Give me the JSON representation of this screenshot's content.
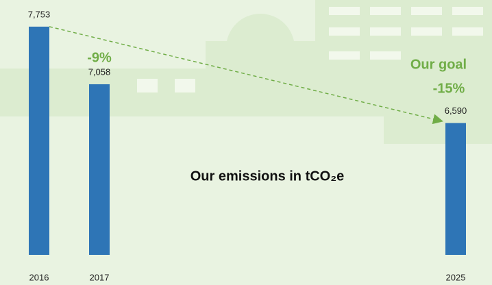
{
  "chart_data": {
    "type": "bar",
    "categories": [
      "2016",
      "2017",
      "2025"
    ],
    "values": [
      7753,
      7058,
      6590
    ],
    "value_labels": [
      "7,753",
      "7,058",
      "6,590"
    ],
    "color": "#2e75b6",
    "ylim": [
      5000,
      8000
    ],
    "annotations": [
      "-9%",
      "Our goal",
      "-15%",
      "Our emissions in tCO₂e"
    ]
  }
}
